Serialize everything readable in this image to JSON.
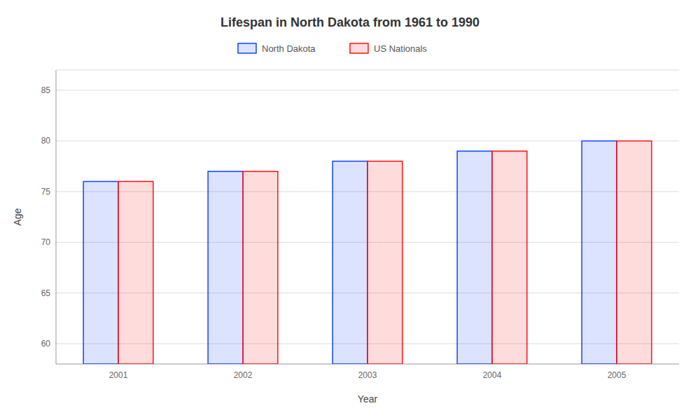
{
  "chart_data": {
    "type": "bar",
    "title": "Lifespan in North Dakota from 1961 to 1990",
    "xlabel": "Year",
    "ylabel": "Age",
    "categories": [
      "2001",
      "2002",
      "2003",
      "2004",
      "2005"
    ],
    "series": [
      {
        "name": "North Dakota",
        "color": "#1144ff",
        "values": [
          76,
          77,
          78,
          79,
          80
        ]
      },
      {
        "name": "US Nationals",
        "color": "#ff1111",
        "values": [
          76,
          77,
          78,
          79,
          80
        ]
      }
    ],
    "ylim": [
      58,
      87
    ],
    "yticks": [
      60,
      65,
      70,
      75,
      80,
      85
    ],
    "grid": true,
    "legend": "top"
  }
}
